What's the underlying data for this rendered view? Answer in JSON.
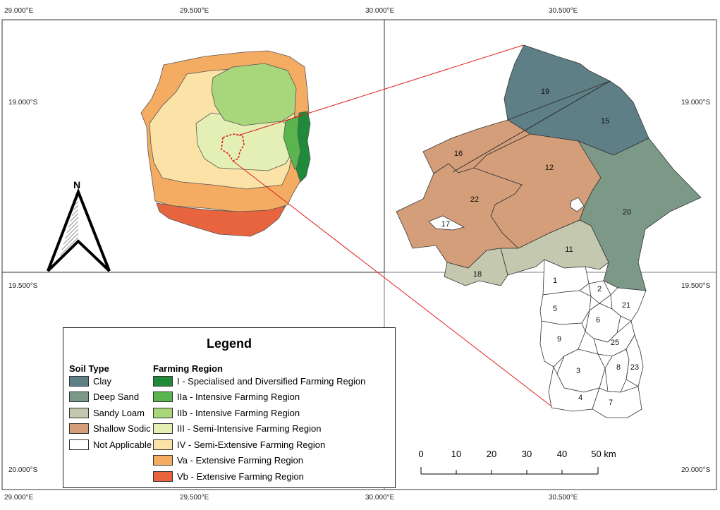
{
  "coordinates": {
    "left_top": [
      "29.000°E",
      "29.500°E",
      "30.000°E"
    ],
    "right_top": [
      "30.500°E"
    ],
    "left_side": [
      "19.000°S",
      "19.500°S",
      "20.000°S"
    ],
    "right_side": [
      "19.000°S",
      "19.500°S",
      "20.000°S"
    ],
    "left_bottom": [
      "29.000°E",
      "29.500°E",
      "30.000°E"
    ],
    "right_bottom": [
      "30.500°E"
    ]
  },
  "north_arrow": {
    "label": "N"
  },
  "legend": {
    "title": "Legend",
    "soil_type_heading": "Soil Type",
    "farming_region_heading": "Farming Region",
    "soil_types": [
      {
        "label": "Clay",
        "color": "#5f7f86"
      },
      {
        "label": "Deep Sand",
        "color": "#7c9987"
      },
      {
        "label": "Sandy Loam",
        "color": "#c3c8ae"
      },
      {
        "label": "Shallow Sodic",
        "color": "#d59e7a"
      },
      {
        "label": "Not Applicable",
        "color": "#ffffff"
      }
    ],
    "farming_regions": [
      {
        "label": "I - Specialised and Diversified Farming Region",
        "color": "#1f8a3a"
      },
      {
        "label": "IIa - Intensive Farming Region",
        "color": "#5bb54f"
      },
      {
        "label": "IIb - Intensive Farming Region",
        "color": "#a8d67a"
      },
      {
        "label": "III - Semi-Intensive Farming Region",
        "color": "#e3efb4"
      },
      {
        "label": "IV - Semi-Extensive Farming Region",
        "color": "#fbe3a8"
      },
      {
        "label": "Va - Extensive Farming Region",
        "color": "#f4ab62"
      },
      {
        "label": "Vb - Extensive Farming Region",
        "color": "#e8643e"
      }
    ]
  },
  "scale_bar": {
    "ticks": [
      "0",
      "10",
      "20",
      "30",
      "40",
      "50 km"
    ]
  },
  "region_labels": [
    "19",
    "15",
    "16",
    "12",
    "22",
    "20",
    "17",
    "11",
    "18",
    "1",
    "2",
    "5",
    "21",
    "6",
    "9",
    "25",
    "3",
    "8",
    "23",
    "4",
    "7"
  ],
  "colors": {
    "pointer_line": "#e02020",
    "study_area_outline": "#e02020"
  }
}
